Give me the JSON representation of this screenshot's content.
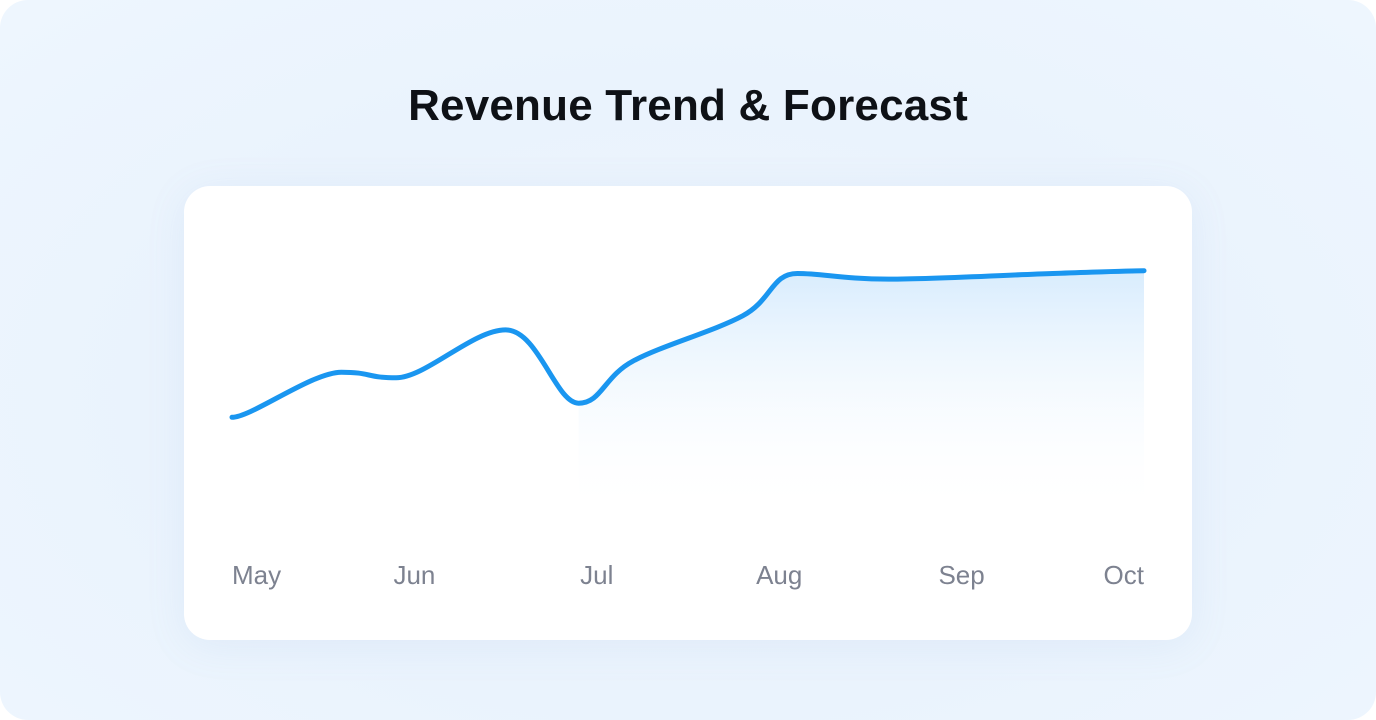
{
  "title": "Revenue Trend & Forecast",
  "colors": {
    "line": "#1a96f0",
    "area_top": "#d6ebfd",
    "tick_text": "#7d8290",
    "title_text": "#0e1116"
  },
  "chart_data": {
    "type": "line",
    "title": "Revenue Trend & Forecast",
    "xlabel": "",
    "ylabel": "",
    "categories": [
      "May",
      "Jun",
      "Jul",
      "Aug",
      "Sep",
      "Oct"
    ],
    "grid": false,
    "legend": "none",
    "ylim": [
      0,
      100
    ],
    "series": [
      {
        "x": [
          0,
          0.6,
          0.9,
          1.5,
          1.9,
          2.2,
          2.8,
          3.1,
          3.6,
          4.5,
          5.0
        ],
        "y": [
          35,
          51,
          49,
          66,
          40,
          55,
          71,
          86,
          84,
          86,
          87
        ],
        "forecast_from_x": 1.9
      }
    ]
  }
}
